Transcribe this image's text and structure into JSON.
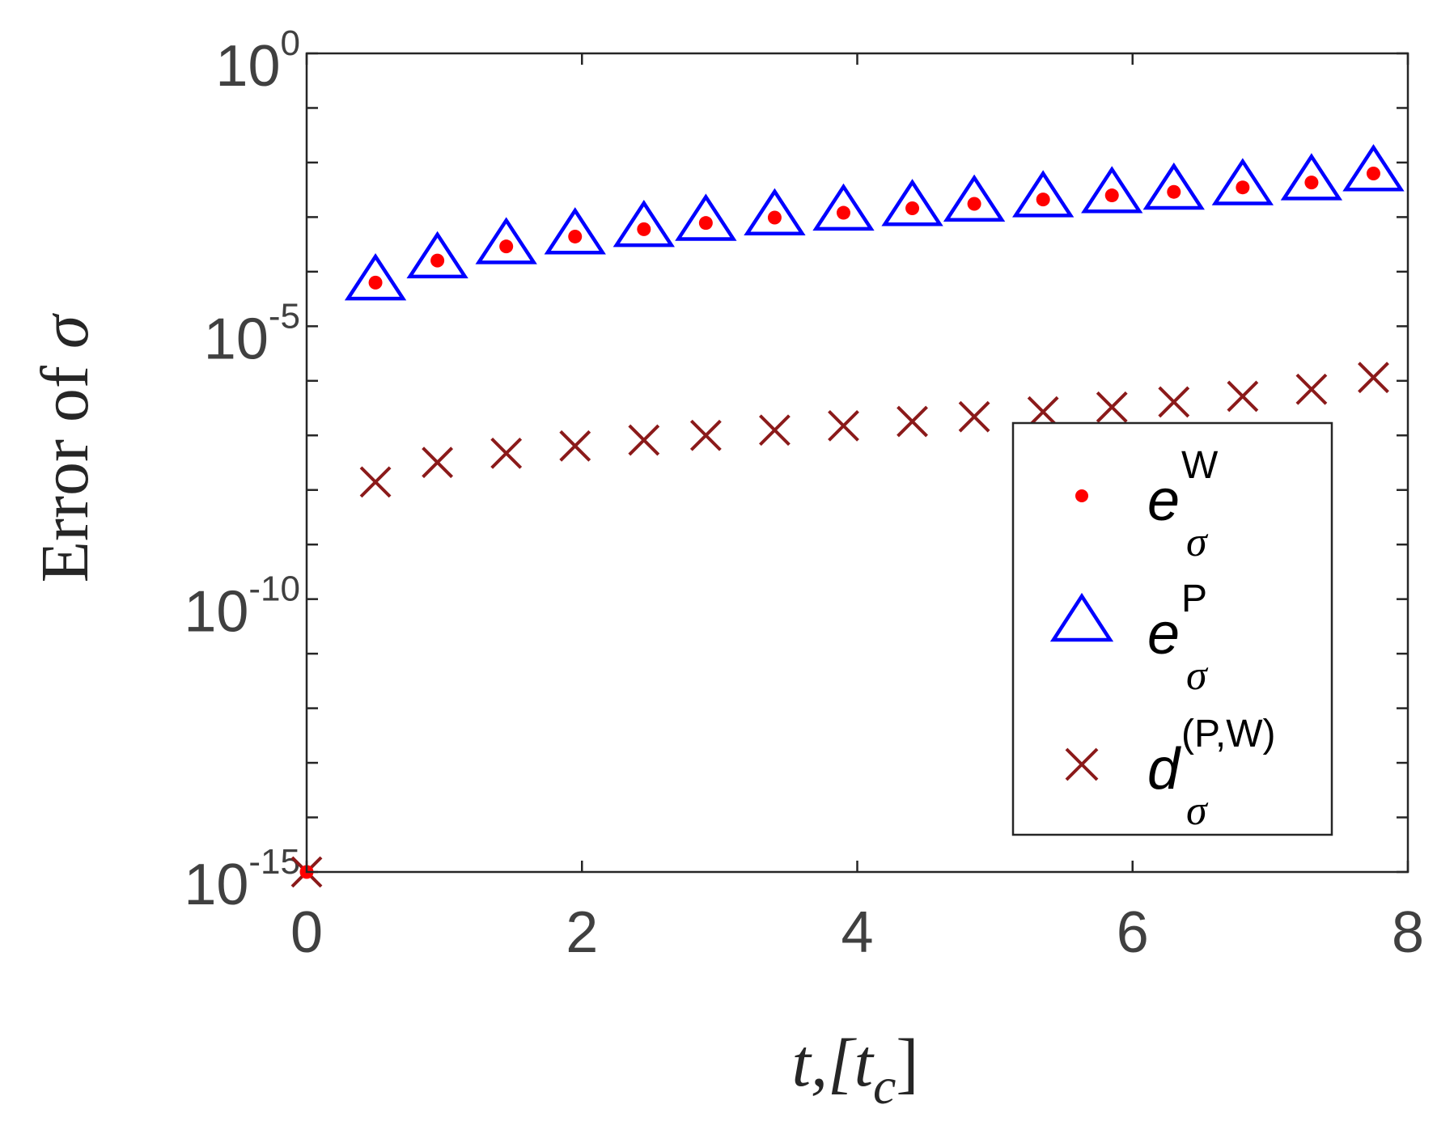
{
  "chart_data": {
    "type": "scatter",
    "xlabel": {
      "base": "t,[t",
      "sub": "c",
      "end": "]"
    },
    "ylabel": {
      "text": "Error of ",
      "symbol": "σ"
    },
    "xlim": [
      0,
      8
    ],
    "ylim": [
      1e-15,
      1
    ],
    "yscale": "log",
    "grid": false,
    "legend_position": "bottom-right",
    "x_ticks": [
      {
        "value": 0,
        "label": "0"
      },
      {
        "value": 2,
        "label": "2"
      },
      {
        "value": 4,
        "label": "4"
      },
      {
        "value": 6,
        "label": "6"
      },
      {
        "value": 8,
        "label": "8"
      }
    ],
    "y_ticks": [
      {
        "value": 1,
        "base": "10",
        "exp": "0"
      },
      {
        "value": 1e-05,
        "base": "10",
        "exp": "-5"
      },
      {
        "value": 1e-10,
        "base": "10",
        "exp": "-10"
      },
      {
        "value": 1e-15,
        "base": "10",
        "exp": "-15"
      }
    ],
    "series": [
      {
        "name": {
          "main": "e",
          "sup": "W",
          "sub": "σ"
        },
        "marker": "dot",
        "color": "#ff0000",
        "x": [
          0,
          0.5,
          0.95,
          1.45,
          1.95,
          2.45,
          2.9,
          3.4,
          3.9,
          4.4,
          4.85,
          5.35,
          5.85,
          6.3,
          6.8,
          7.3,
          7.75
        ],
        "y": [
          1e-15,
          6.3e-05,
          0.00016,
          0.00029,
          0.00044,
          0.0006,
          0.00078,
          0.00098,
          0.0012,
          0.00145,
          0.00175,
          0.0021,
          0.0025,
          0.0029,
          0.0035,
          0.0043,
          0.0063
        ]
      },
      {
        "name": {
          "main": "e",
          "sup": "P",
          "sub": "σ"
        },
        "marker": "triangle",
        "color": "#0000ff",
        "x": [
          0.5,
          0.95,
          1.45,
          1.95,
          2.45,
          2.9,
          3.4,
          3.9,
          4.4,
          4.85,
          5.35,
          5.85,
          6.3,
          6.8,
          7.3,
          7.75
        ],
        "y": [
          6.3e-05,
          0.00016,
          0.00029,
          0.00044,
          0.0006,
          0.00078,
          0.00098,
          0.0012,
          0.00145,
          0.00175,
          0.0021,
          0.0025,
          0.0029,
          0.0035,
          0.0043,
          0.0063
        ]
      },
      {
        "name": {
          "main": "d",
          "sup": "(P,W)",
          "sub": "σ"
        },
        "marker": "x",
        "color": "#8b1a1a",
        "x": [
          0,
          0.5,
          0.95,
          1.45,
          1.95,
          2.45,
          2.9,
          3.4,
          3.9,
          4.4,
          4.85,
          5.35,
          5.85,
          6.3,
          6.8,
          7.3,
          7.75
        ],
        "y": [
          1e-15,
          1.4e-08,
          3.2e-08,
          4.7e-08,
          6.4e-08,
          8.2e-08,
          1e-07,
          1.25e-07,
          1.5e-07,
          1.8e-07,
          2.2e-07,
          2.7e-07,
          3.3e-07,
          4.1e-07,
          5.2e-07,
          7e-07,
          1.15e-06
        ]
      }
    ]
  }
}
